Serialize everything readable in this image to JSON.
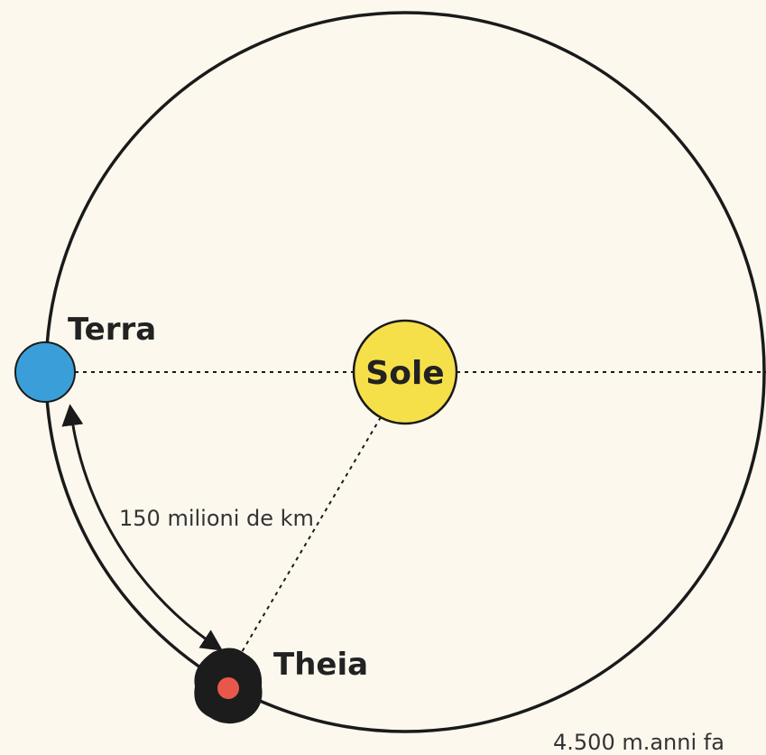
{
  "labels": {
    "earth": "Terra",
    "sun": "Sole",
    "distance": "150 milioni de km",
    "theia": "Theia",
    "time": "4.500 m.anni fa"
  }
}
